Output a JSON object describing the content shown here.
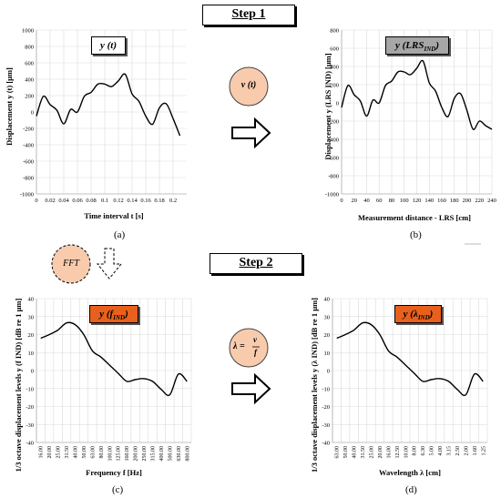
{
  "steps": {
    "step1": "Step 1",
    "step2": "Step 2"
  },
  "circles": {
    "vt": "v (t)",
    "fft": "FFT"
  },
  "formula": {
    "lhs": "λ =",
    "num": "v",
    "den": "f"
  },
  "panels": {
    "a": {
      "letter": "(a)",
      "chip": "y (t)",
      "ylabel": "Displacement y (t) [μm]",
      "xlabel": "Time interval t [s]"
    },
    "b": {
      "letter": "(b)",
      "chip": "y (LRS",
      "chip_sub": "IND",
      "chip_end": ")",
      "ylabel": "Displacement y (LRS IND) [μm]",
      "xlabel": "Measurement distance - LRS [cm]"
    },
    "c": {
      "letter": "(c)",
      "chip": "y (f",
      "chip_sub": "IND",
      "chip_end": ")",
      "ylabel": "1/3 octave displacement levels y (f IND) [dB re 1 μm]",
      "xlabel": "Frequency f [Hz]"
    },
    "d": {
      "letter": "(d)",
      "chip": "y (λ",
      "chip_sub": "IND",
      "chip_end": ")",
      "ylabel": "1/3 octave displacement levels y (λ IND) [dB re 1 μm]",
      "xlabel": "Wavelength λ [cm]"
    }
  },
  "colors": {
    "grid": "#d9d9d9",
    "line": "#000000",
    "chip_gray": "#a6a6a6",
    "chip_orange": "#e8601c",
    "chip_white": "#ffffff",
    "circle_fill": "#f8cbad"
  },
  "chart_data": [
    {
      "type": "line",
      "panel": "a",
      "xticks": [
        "0",
        "0.02",
        "0.04",
        "0.06",
        "0.08",
        "0.1",
        "0.12",
        "0.14",
        "0.16",
        "0.18",
        "0.2"
      ],
      "yticks": [
        "1000",
        "800",
        "600",
        "400",
        "200",
        "0",
        "-200",
        "-400",
        "-600",
        "-800",
        "-1000"
      ],
      "xlim": [
        0,
        0.22
      ],
      "ylim": [
        -1000,
        1000
      ],
      "x": [
        0,
        0.01,
        0.02,
        0.03,
        0.04,
        0.05,
        0.06,
        0.07,
        0.08,
        0.09,
        0.1,
        0.11,
        0.12,
        0.13,
        0.14,
        0.15,
        0.16,
        0.17,
        0.18,
        0.19,
        0.2,
        0.21
      ],
      "y": [
        -50,
        190,
        90,
        20,
        -145,
        30,
        0,
        190,
        240,
        340,
        340,
        310,
        380,
        460,
        220,
        130,
        -50,
        -150,
        50,
        100,
        -80,
        -290
      ]
    },
    {
      "type": "line",
      "panel": "b",
      "xticks": [
        "0",
        "20",
        "40",
        "60",
        "80",
        "100",
        "120",
        "140",
        "160",
        "180",
        "200",
        "220",
        "240"
      ],
      "yticks": [
        "800",
        "600",
        "400",
        "200",
        "0",
        "-200",
        "-400",
        "-600",
        "-800",
        "-1000"
      ],
      "xlim": [
        0,
        240
      ],
      "ylim": [
        -1000,
        800
      ],
      "x": [
        0,
        10,
        20,
        30,
        40,
        50,
        60,
        70,
        80,
        90,
        100,
        110,
        120,
        130,
        140,
        150,
        160,
        170,
        180,
        190,
        200,
        210,
        220,
        230,
        240
      ],
      "y": [
        -50,
        190,
        90,
        20,
        -145,
        30,
        0,
        190,
        240,
        340,
        340,
        310,
        380,
        460,
        220,
        130,
        -50,
        -150,
        50,
        100,
        -80,
        -290,
        -200,
        -250,
        -290
      ]
    },
    {
      "type": "line",
      "panel": "c",
      "categories": [
        "16.00",
        "20.00",
        "25.00",
        "31.50",
        "40.00",
        "50.00",
        "63.00",
        "80.00",
        "100.00",
        "125.00",
        "160.00",
        "200.00",
        "250.00",
        "315.00",
        "400.00",
        "500.00",
        "630.00",
        "800.00"
      ],
      "yticks": [
        "40",
        "30",
        "20",
        "10",
        "0",
        "-10",
        "-20",
        "-30",
        "-40"
      ],
      "ylim": [
        -40,
        40
      ],
      "values": [
        18,
        20,
        22.5,
        26.5,
        25.5,
        20,
        11,
        7.5,
        3,
        -1.5,
        -6,
        -5,
        -4.5,
        -6,
        -10.5,
        -13.5,
        -2,
        -6
      ]
    },
    {
      "type": "line",
      "panel": "d",
      "categories": [
        "63.00",
        "50.00",
        "40.00",
        "31.50",
        "25.00",
        "20.00",
        "16.00",
        "12.50",
        "10.00",
        "8.00",
        "6.30",
        "5.00",
        "4.00",
        "3.15",
        "2.50",
        "2.00",
        "1.60",
        "1.25"
      ],
      "yticks": [
        "40",
        "30",
        "20",
        "10",
        "0",
        "-10",
        "-20",
        "-30",
        "-40"
      ],
      "ylim": [
        -40,
        40
      ],
      "values": [
        18,
        20,
        22.5,
        26.5,
        25.5,
        20,
        11,
        7.5,
        3,
        -1.5,
        -6,
        -5,
        -4.5,
        -6,
        -10.5,
        -13.5,
        -2,
        -6
      ]
    }
  ]
}
